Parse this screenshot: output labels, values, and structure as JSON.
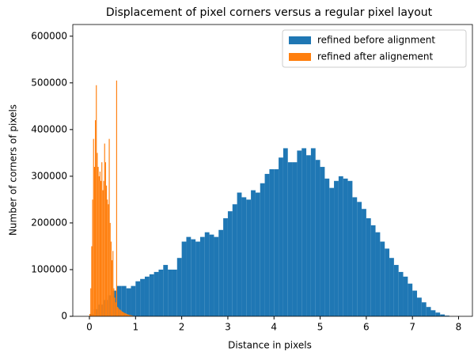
{
  "chart_data": {
    "type": "histogram",
    "title": "Displacement of pixel corners versus a regular pixel layout",
    "x_label": "Distance in pixels",
    "y_label": "Number of corners of pixels",
    "xlim": [
      -0.36,
      8.3
    ],
    "ylim": [
      0,
      625000
    ],
    "xticks": [
      0,
      1,
      2,
      3,
      4,
      5,
      6,
      7,
      8
    ],
    "yticks": [
      0,
      100000,
      200000,
      300000,
      400000,
      500000,
      600000
    ],
    "legend": "upper right",
    "series": [
      {
        "name": "refined before alignment",
        "color": "#1f77b4",
        "bins": [
          0,
          0.1,
          0.2,
          0.3,
          0.4,
          0.5,
          0.6,
          0.7,
          0.8,
          0.9,
          1,
          1.1,
          1.2,
          1.3,
          1.4,
          1.5,
          1.6,
          1.7,
          1.8,
          1.9,
          2,
          2.1,
          2.2,
          2.3,
          2.4,
          2.5,
          2.6,
          2.7,
          2.8,
          2.9,
          3,
          3.1,
          3.2,
          3.3,
          3.4,
          3.5,
          3.6,
          3.7,
          3.8,
          3.9,
          4,
          4.1,
          4.2,
          4.3,
          4.4,
          4.5,
          4.6,
          4.7,
          4.8,
          4.9,
          5,
          5.1,
          5.2,
          5.3,
          5.4,
          5.5,
          5.6,
          5.7,
          5.8,
          5.9,
          6,
          6.1,
          6.2,
          6.3,
          6.4,
          6.5,
          6.6,
          6.7,
          6.8,
          6.9,
          7,
          7.1,
          7.2,
          7.3,
          7.4,
          7.5,
          7.6,
          7.7,
          7.8
        ],
        "values": [
          5000,
          15000,
          25000,
          35000,
          45000,
          55000,
          65000,
          65000,
          60000,
          65000,
          75000,
          80000,
          85000,
          90000,
          95000,
          100000,
          110000,
          100000,
          100000,
          125000,
          160000,
          170000,
          165000,
          160000,
          170000,
          180000,
          175000,
          170000,
          185000,
          210000,
          225000,
          240000,
          265000,
          255000,
          250000,
          270000,
          265000,
          285000,
          305000,
          315000,
          315000,
          340000,
          360000,
          330000,
          330000,
          355000,
          360000,
          345000,
          360000,
          335000,
          320000,
          295000,
          275000,
          290000,
          300000,
          295000,
          290000,
          255000,
          245000,
          230000,
          210000,
          195000,
          180000,
          160000,
          145000,
          125000,
          110000,
          95000,
          85000,
          70000,
          55000,
          40000,
          30000,
          20000,
          13000,
          8000,
          4000,
          1500
        ]
      },
      {
        "name": "refined after alignement",
        "color": "#ff7f0e",
        "bins": [
          0,
          0.02,
          0.04,
          0.06,
          0.08,
          0.1,
          0.12,
          0.14,
          0.16,
          0.18,
          0.2,
          0.22,
          0.24,
          0.26,
          0.28,
          0.3,
          0.32,
          0.34,
          0.36,
          0.38,
          0.4,
          0.42,
          0.44,
          0.46,
          0.48,
          0.5,
          0.52,
          0.54,
          0.56,
          0.58,
          0.6,
          0.62,
          0.64,
          0.66,
          0.68,
          0.7,
          0.72,
          0.74,
          0.76,
          0.78,
          0.8,
          0.82,
          0.84,
          0.86,
          0.88,
          0.9,
          0.92,
          0.94,
          0.96,
          0.98,
          1
        ],
        "values": [
          5000,
          60000,
          150000,
          250000,
          380000,
          320000,
          420000,
          495000,
          350000,
          320000,
          300000,
          310000,
          290000,
          330000,
          270000,
          290000,
          370000,
          330000,
          280000,
          250000,
          240000,
          380000,
          200000,
          160000,
          120000,
          140000,
          60000,
          40000,
          30000,
          505000,
          20000,
          18000,
          15000,
          14000,
          12000,
          10000,
          9000,
          8000,
          7000,
          6000,
          5000,
          4000,
          3500,
          3000,
          2500,
          2000,
          1500,
          1000,
          800,
          500
        ]
      }
    ]
  }
}
